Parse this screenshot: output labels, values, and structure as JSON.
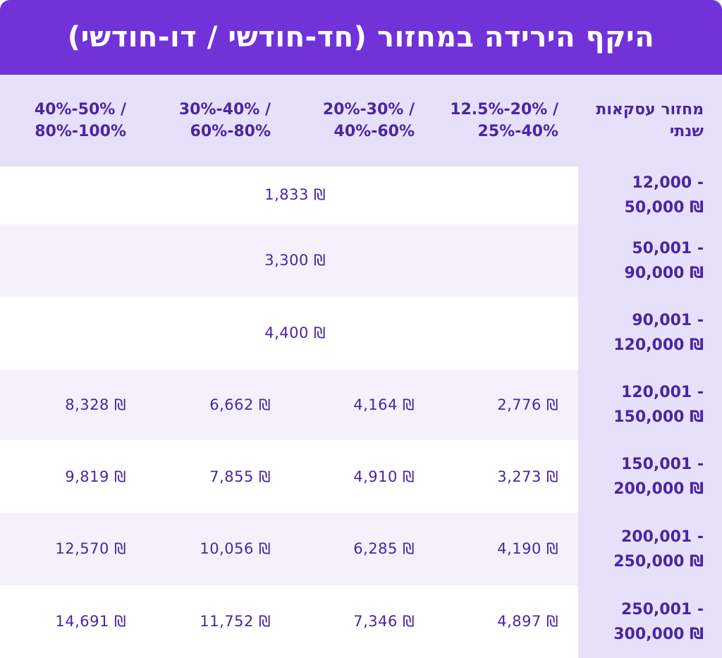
{
  "title": "היקף הירידה במחזור (חד-חודשי / דו-חודשי)",
  "colors": {
    "title_bg": "#7133d8",
    "header_bg": "#e6e0fb",
    "row_odd": "#ffffff",
    "row_even": "#f4f1fd",
    "text": "#4a26a0"
  },
  "header": {
    "range_label_line1": "מחזור עסקאות",
    "range_label_line2": "שנתי",
    "columns": [
      {
        "line1": "12.5%-20% /",
        "line2": "25%-40%"
      },
      {
        "line1": "20%-30% /",
        "line2": "40%-60%"
      },
      {
        "line1": "30%-40% /",
        "line2": "60%-80%"
      },
      {
        "line1": "40%-50% /",
        "line2": "80%-100%"
      }
    ]
  },
  "rows": [
    {
      "range_line1": "12,000 -",
      "range_line2": "50,000 ₪",
      "merged": "1,833 ₪"
    },
    {
      "range_line1": "50,001 -",
      "range_line2": "90,000 ₪",
      "merged": "3,300 ₪"
    },
    {
      "range_line1": "90,001 -",
      "range_line2": "120,000 ₪",
      "merged": "4,400 ₪"
    },
    {
      "range_line1": "120,001 -",
      "range_line2": "150,000 ₪",
      "values": [
        "2,776 ₪",
        "4,164 ₪",
        "6,662 ₪",
        "8,328 ₪"
      ]
    },
    {
      "range_line1": "150,001 -",
      "range_line2": "200,000 ₪",
      "values": [
        "3,273 ₪",
        "4,910 ₪",
        "7,855 ₪",
        "9,819 ₪"
      ]
    },
    {
      "range_line1": "200,001 -",
      "range_line2": "250,000 ₪",
      "values": [
        "4,190 ₪",
        "6,285 ₪",
        "10,056 ₪",
        "12,570 ₪"
      ]
    },
    {
      "range_line1": "250,001 -",
      "range_line2": "300,000 ₪",
      "values": [
        "4,897 ₪",
        "7,346 ₪",
        "11,752 ₪",
        "14,691 ₪"
      ]
    }
  ]
}
